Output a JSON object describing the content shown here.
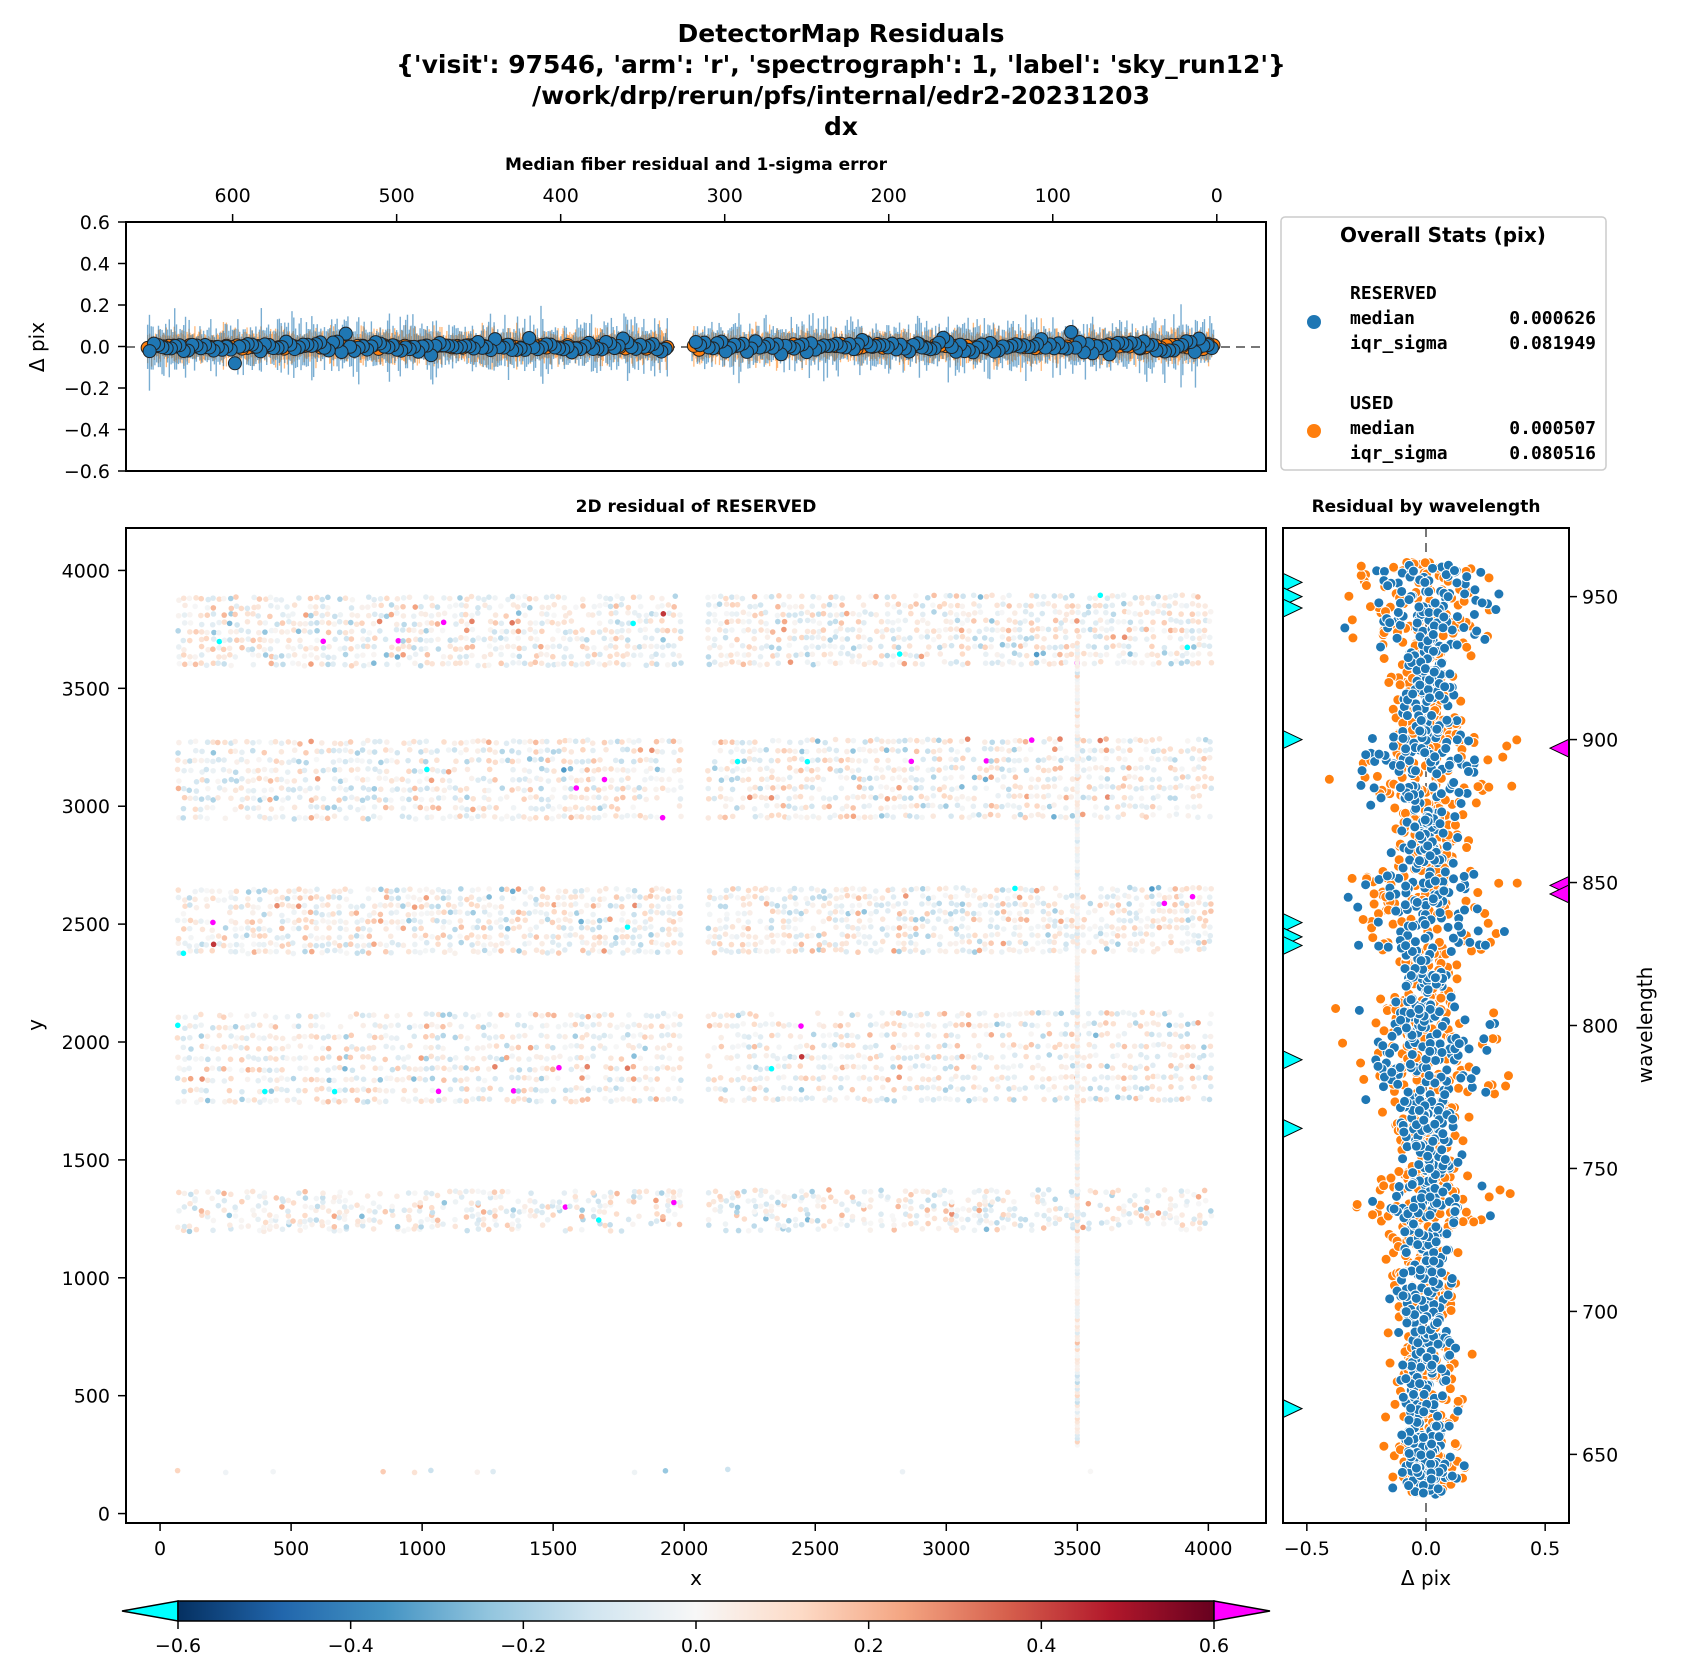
{
  "figure": {
    "title_lines": [
      "DetectorMap Residuals",
      "{'visit': 97546, 'arm': 'r', 'spectrograph': 1, 'label': 'sky_run12'}",
      "/work/drp/rerun/pfs/internal/edr2-20231203",
      "dx"
    ]
  },
  "chart_data": [
    {
      "name": "fiber-residual",
      "type": "scatter",
      "title": "Median fiber residual and 1-sigma error",
      "xlabel": "",
      "ylabel": "Δ pix",
      "xlim": [
        665,
        -30
      ],
      "ylim": [
        -0.6,
        0.6
      ],
      "xticks": [
        600,
        500,
        400,
        300,
        200,
        100,
        0
      ],
      "yticks": [
        -0.6,
        -0.4,
        -0.2,
        0.0,
        0.2,
        0.4,
        0.6
      ],
      "ytick_labels": [
        "−0.6",
        "−0.4",
        "−0.2",
        "0.0",
        "0.2",
        "0.4",
        "0.6"
      ],
      "reference_line_y": 0.0,
      "fiber_ranges": [
        [
          2,
          320
        ],
        [
          335,
          652
        ]
      ],
      "series": [
        {
          "name": "RESERVED",
          "color": "#1f77b4",
          "median": 0.000626,
          "iqr_sigma": 0.081949
        },
        {
          "name": "USED",
          "color": "#ff7f0e",
          "median": 0.000507,
          "iqr_sigma": 0.080516
        }
      ],
      "grid": false
    },
    {
      "name": "residual-2d",
      "type": "scatter",
      "title": "2D residual of RESERVED",
      "xlabel": "x",
      "ylabel": "y",
      "xlim": [
        -130,
        4220
      ],
      "ylim": [
        -40,
        4180
      ],
      "xticks": [
        0,
        500,
        1000,
        1500,
        2000,
        2500,
        3000,
        3500,
        4000
      ],
      "yticks": [
        0,
        500,
        1000,
        1500,
        2000,
        2500,
        3000,
        3500,
        4000
      ],
      "color_by": "dx",
      "colormap": "RdBu_r",
      "vmin": -0.6,
      "vmax": 0.6,
      "under_color": "#00ffff",
      "over_color": "#ff00ff",
      "bands_y": [
        [
          3600,
          3880
        ],
        [
          2950,
          3270
        ],
        [
          2380,
          2640
        ],
        [
          1750,
          2110
        ],
        [
          1200,
          1360
        ],
        [
          150,
          200
        ]
      ],
      "vertical_trace_x": 3500,
      "grid": false
    },
    {
      "name": "residual-by-wavelength",
      "type": "scatter",
      "title": "Residual by wavelength",
      "xlabel": "Δ pix",
      "ylabel": "wavelength",
      "xlim": [
        -0.6,
        0.6
      ],
      "ylim": [
        626,
        974
      ],
      "xticks": [
        -0.5,
        0.0,
        0.5
      ],
      "xtick_labels": [
        "−0.5",
        "0.0",
        "0.5"
      ],
      "yticks": [
        650,
        700,
        750,
        800,
        850,
        900,
        950
      ],
      "ylabel_side": "right",
      "reference_line_x": 0.0,
      "series": [
        {
          "name": "RESERVED",
          "color": "#1f77b4"
        },
        {
          "name": "USED",
          "color": "#ff7f0e"
        }
      ],
      "outliers_low_wavelength": [
        955,
        950,
        946,
        900,
        836,
        831,
        828,
        788,
        764,
        666
      ],
      "outliers_high_wavelength": [
        897,
        849,
        846
      ],
      "grid": false
    },
    {
      "name": "colorbar",
      "type": "heatmap",
      "colormap": "RdBu_r",
      "range": [
        -0.6,
        0.6
      ],
      "ticks": [
        -0.6,
        -0.4,
        -0.2,
        0.0,
        0.2,
        0.4,
        0.6
      ],
      "tick_labels": [
        "−0.6",
        "−0.4",
        "−0.2",
        "0.0",
        "0.2",
        "0.4",
        "0.6"
      ],
      "extend": "both",
      "under_color": "#00ffff",
      "over_color": "#ff00ff"
    }
  ],
  "legend": {
    "title": "Overall Stats (pix)",
    "placement": "right of top panel",
    "groups": [
      {
        "name": "RESERVED",
        "color": "#1f77b4",
        "rows": [
          [
            "median",
            "0.000626"
          ],
          [
            "iqr_sigma",
            "0.081949"
          ]
        ]
      },
      {
        "name": "USED",
        "color": "#ff7f0e",
        "rows": [
          [
            "median",
            "0.000507"
          ],
          [
            "iqr_sigma",
            "0.080516"
          ]
        ]
      }
    ]
  }
}
